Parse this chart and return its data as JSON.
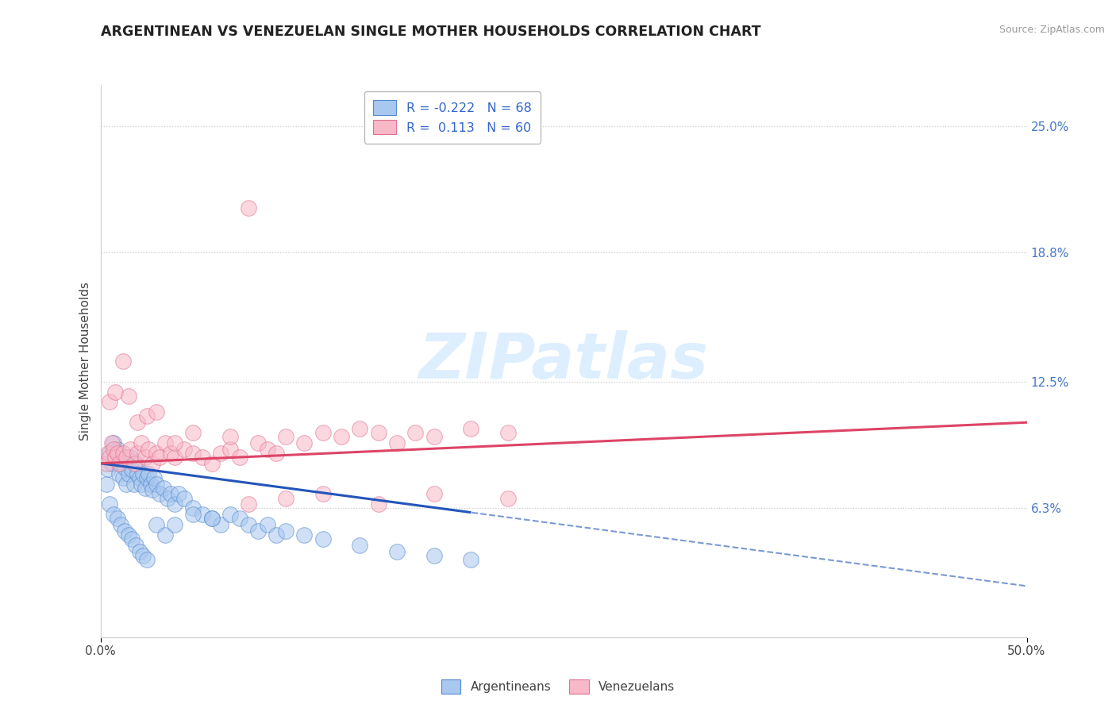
{
  "title": "ARGENTINEAN VS VENEZUELAN SINGLE MOTHER HOUSEHOLDS CORRELATION CHART",
  "source": "Source: ZipAtlas.com",
  "ylabel": "Single Mother Households",
  "xlim": [
    0.0,
    50.0
  ],
  "ylim": [
    0.0,
    27.0
  ],
  "ytick_positions": [
    6.3,
    12.5,
    18.8,
    25.0
  ],
  "ytick_labels": [
    "6.3%",
    "12.5%",
    "18.8%",
    "25.0%"
  ],
  "argentina_color": "#a8c8f0",
  "argentina_edge_color": "#5588cc",
  "venezuela_color": "#f8b8c8",
  "venezuela_edge_color": "#e07090",
  "argentina_line_color": "#2255bb",
  "venezuela_line_color": "#dd4466",
  "grid_color": "#cccccc",
  "watermark_color": "#dde8f0",
  "background_color": "#ffffff",
  "argentina_R": -0.222,
  "argentina_N": 68,
  "venezuela_R": 0.113,
  "venezuela_N": 60,
  "argentina_x": [
    0.3,
    0.4,
    0.5,
    0.6,
    0.7,
    0.8,
    0.9,
    1.0,
    1.1,
    1.2,
    1.3,
    1.4,
    1.5,
    1.6,
    1.7,
    1.8,
    1.9,
    2.0,
    2.1,
    2.2,
    2.3,
    2.4,
    2.5,
    2.6,
    2.7,
    2.8,
    2.9,
    3.0,
    3.2,
    3.4,
    3.6,
    3.8,
    4.0,
    4.2,
    4.5,
    5.0,
    5.5,
    6.0,
    6.5,
    7.0,
    7.5,
    8.0,
    8.5,
    9.0,
    9.5,
    10.0,
    11.0,
    12.0,
    14.0,
    16.0,
    18.0,
    20.0,
    0.5,
    0.7,
    0.9,
    1.1,
    1.3,
    1.5,
    1.7,
    1.9,
    2.1,
    2.3,
    2.5,
    3.0,
    3.5,
    4.0,
    5.0,
    6.0
  ],
  "argentina_y": [
    7.5,
    8.2,
    9.0,
    8.5,
    9.5,
    8.8,
    9.2,
    8.0,
    8.5,
    7.8,
    8.3,
    7.5,
    8.0,
    8.8,
    8.2,
    7.5,
    8.5,
    8.0,
    7.8,
    7.5,
    8.0,
    7.3,
    7.8,
    8.0,
    7.5,
    7.2,
    7.8,
    7.5,
    7.0,
    7.3,
    6.8,
    7.0,
    6.5,
    7.0,
    6.8,
    6.3,
    6.0,
    5.8,
    5.5,
    6.0,
    5.8,
    5.5,
    5.2,
    5.5,
    5.0,
    5.2,
    5.0,
    4.8,
    4.5,
    4.2,
    4.0,
    3.8,
    6.5,
    6.0,
    5.8,
    5.5,
    5.2,
    5.0,
    4.8,
    4.5,
    4.2,
    4.0,
    3.8,
    5.5,
    5.0,
    5.5,
    6.0,
    5.8
  ],
  "venezuela_x": [
    0.3,
    0.4,
    0.5,
    0.6,
    0.7,
    0.8,
    0.9,
    1.0,
    1.2,
    1.4,
    1.6,
    1.8,
    2.0,
    2.2,
    2.4,
    2.6,
    2.8,
    3.0,
    3.2,
    3.5,
    3.8,
    4.0,
    4.5,
    5.0,
    5.5,
    6.0,
    6.5,
    7.0,
    7.5,
    8.0,
    8.5,
    9.0,
    9.5,
    10.0,
    11.0,
    12.0,
    13.0,
    14.0,
    15.0,
    16.0,
    17.0,
    18.0,
    20.0,
    22.0,
    8.0,
    10.0,
    12.0,
    15.0,
    18.0,
    22.0,
    0.5,
    0.8,
    1.2,
    1.5,
    2.0,
    2.5,
    3.0,
    4.0,
    5.0,
    7.0
  ],
  "venezuela_y": [
    8.5,
    9.0,
    8.8,
    9.5,
    9.2,
    8.8,
    9.0,
    8.5,
    9.0,
    8.8,
    9.2,
    8.5,
    9.0,
    9.5,
    8.8,
    9.2,
    8.5,
    9.0,
    8.8,
    9.5,
    9.0,
    8.8,
    9.2,
    9.0,
    8.8,
    8.5,
    9.0,
    9.2,
    8.8,
    21.0,
    9.5,
    9.2,
    9.0,
    9.8,
    9.5,
    10.0,
    9.8,
    10.2,
    10.0,
    9.5,
    10.0,
    9.8,
    10.2,
    10.0,
    6.5,
    6.8,
    7.0,
    6.5,
    7.0,
    6.8,
    11.5,
    12.0,
    13.5,
    11.8,
    10.5,
    10.8,
    11.0,
    9.5,
    10.0,
    9.8
  ],
  "arg_line_intercept": 8.5,
  "arg_line_slope": -0.12,
  "ven_line_intercept": 8.5,
  "ven_line_slope": 0.04,
  "solid_cutoff": 20.0
}
